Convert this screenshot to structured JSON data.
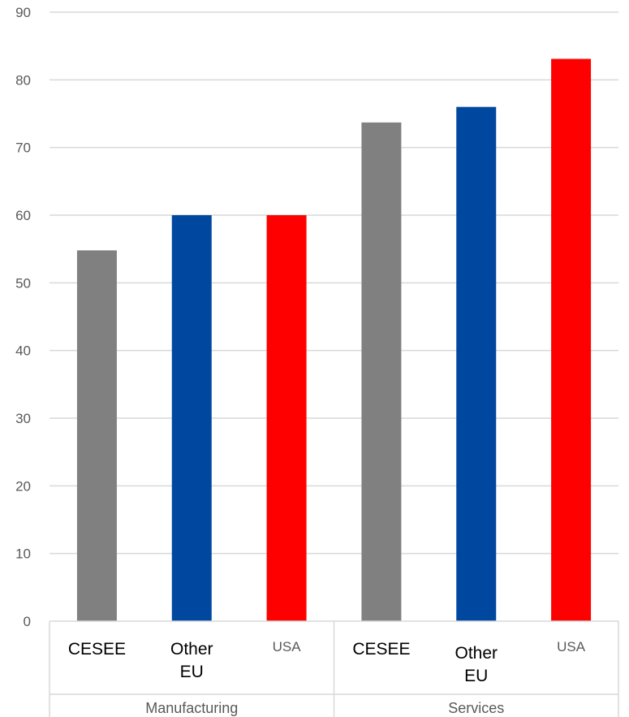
{
  "chart_data": {
    "type": "bar",
    "title": "",
    "xlabel": "",
    "ylabel": "",
    "ylim": [
      0,
      90
    ],
    "yticks": [
      0,
      10,
      20,
      30,
      40,
      50,
      60,
      70,
      80,
      90
    ],
    "grid": true,
    "groups": [
      {
        "name": "Manufacturing",
        "categories": [
          {
            "label": [
              "CESEE"
            ],
            "value": 54.8,
            "color": "#808080"
          },
          {
            "label": [
              "Other",
              "EU"
            ],
            "value": 60.0,
            "color": "#0047A0"
          },
          {
            "label": [
              "USA"
            ],
            "value": 60.0,
            "color": "#FF0000"
          }
        ]
      },
      {
        "name": "Services",
        "categories": [
          {
            "label": [
              "CESEE"
            ],
            "value": 73.7,
            "color": "#808080"
          },
          {
            "label": [
              "Other",
              "EU"
            ],
            "value": 76.0,
            "color": "#0047A0"
          },
          {
            "label": [
              "USA"
            ],
            "value": 83.1,
            "color": "#FF0000"
          }
        ]
      }
    ]
  }
}
